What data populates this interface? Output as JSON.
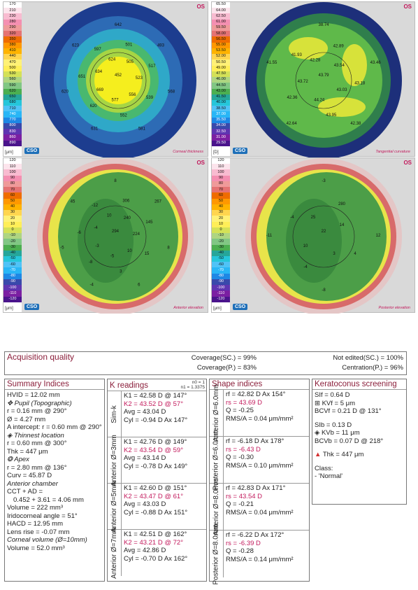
{
  "maps": {
    "top_left": {
      "scale": [
        "170",
        "210",
        "230",
        "280",
        "290",
        "320",
        "350",
        "380",
        "410",
        "440",
        "470",
        "500",
        "530",
        "560",
        "590",
        "620",
        "650",
        "680",
        "710",
        "740",
        "770",
        "800",
        "830",
        "860",
        "890"
      ],
      "unit": "[μm]",
      "side": "OS",
      "title": "Corneal thickness",
      "labels": [
        "452",
        "501",
        "505",
        "493",
        "517",
        "523",
        "568",
        "539",
        "556",
        "581",
        "552",
        "577",
        "631",
        "620",
        "669",
        "620",
        "651",
        "634",
        "623",
        "597",
        "624",
        "642"
      ],
      "colors": {
        "outer": "#1d3d8f",
        "ring1": "#2d6bb5",
        "ring2": "#2fa8c8",
        "ring3": "#49b86f",
        "ring4": "#a6d544",
        "center": "#f5ee1e"
      }
    },
    "top_right": {
      "scale": [
        "65.50",
        "64.00",
        "62.50",
        "61.00",
        "59.50",
        "58.00",
        "56.50",
        "55.00",
        "53.50",
        "52.00",
        "50.50",
        "49.00",
        "47.50",
        "46.00",
        "44.50",
        "43.00",
        "41.50",
        "40.00",
        "38.50",
        "37.00",
        "35.50",
        "34.00",
        "32.50",
        "31.00",
        "29.50"
      ],
      "unit": "[D]",
      "side": "OS",
      "title": "Tangential curvature",
      "labels": [
        "43.79",
        "42.89",
        "43.54",
        "43.46",
        "43.18",
        "43.03",
        "42.38",
        "43.95",
        "44.24",
        "42.64",
        "42.36",
        "43.72",
        "41.55",
        "41.93",
        "42.28",
        "38.74"
      ],
      "colors": {
        "outer": "#1d2f7a",
        "ring1": "#2f7e4c",
        "mid": "#5fb94a",
        "hot": "#d7e23a"
      }
    },
    "bottom_left": {
      "scale": [
        "120",
        "110",
        "100",
        "90",
        "80",
        "70",
        "60",
        "50",
        "40",
        "30",
        "20",
        "10",
        "0",
        "-10",
        "-20",
        "-30",
        "-40",
        "-50",
        "-60",
        "-70",
        "-80",
        "-90",
        "-100",
        "-110",
        "-120"
      ],
      "unit": "[μm]",
      "side": "OS",
      "title": "Anterior elevation",
      "labels": [
        "294",
        "306",
        "240",
        "267",
        "145",
        "224",
        "8",
        "15",
        "10",
        "6",
        "3",
        "-5",
        "-4",
        "-8",
        "-3",
        "-5",
        "-6",
        "-4",
        "45",
        "-12",
        "10",
        "8"
      ],
      "colors": {
        "outer": "#d86a6a",
        "edge": "#e4c6c6",
        "yellow": "#e8e44a",
        "green": "#4c9e48",
        "dark": "#3a8a3e"
      }
    },
    "bottom_right": {
      "scale": [
        "120",
        "110",
        "100",
        "90",
        "80",
        "70",
        "60",
        "50",
        "40",
        "30",
        "20",
        "10",
        "0",
        "-10",
        "-20",
        "-30",
        "-40",
        "-50",
        "-60",
        "-70",
        "-80",
        "-90",
        "-100",
        "-110",
        "-120"
      ],
      "unit": "[μm]",
      "side": "OS",
      "title": "Posterior elevation",
      "labels": [
        "22",
        "280",
        "14",
        "12",
        "4",
        "3",
        "-8",
        "-4",
        "10",
        "-11",
        "-4",
        "25",
        "-3"
      ],
      "colors": {
        "outer": "#d86a6a",
        "edge": "#e4c6c6",
        "yellow": "#e8e44a",
        "green": "#4c9e48",
        "dark": "#3a8a3e"
      }
    }
  },
  "acquisition": {
    "title": "Acquisition quality",
    "coverage_sc": "Coverage(SC.) = 99%",
    "coverage_p": "Coverage(P.) = 83%",
    "not_edited": "Not edited(SC.) = 100%",
    "centration": "Centration(P.) = 96%"
  },
  "summary": {
    "title": "Summary Indices",
    "rows": [
      {
        "text": "HVID = 12.02 mm",
        "style": ""
      },
      {
        "text": "✥ Pupil (Topographic)",
        "style": "ital"
      },
      {
        "text": "r = 0.16 mm @ 290°",
        "style": ""
      },
      {
        "text": "Ø = 4.27 mm",
        "style": ""
      },
      {
        "text": "A intercept: r = 0.60 mm @ 290°",
        "style": ""
      },
      {
        "text": "◈ Thinnest location",
        "style": "ital"
      },
      {
        "text": "r = 0.60 mm @ 300°",
        "style": ""
      },
      {
        "text": "Thk = 447 μm",
        "style": ""
      },
      {
        "text": "❂ Apex",
        "style": "ital"
      },
      {
        "text": "r = 2.80 mm @ 136°",
        "style": ""
      },
      {
        "text": "Curv = 45.87 D",
        "style": ""
      },
      {
        "text": "Anterior chamber",
        "style": "ital"
      },
      {
        "text": "CCT + AD =",
        "style": ""
      },
      {
        "text": "0.452 + 3.61 = 4.06 mm",
        "style": "indent"
      },
      {
        "text": "Volume = 222 mm³",
        "style": ""
      },
      {
        "text": "Iridocorneal angle = 51°",
        "style": ""
      },
      {
        "text": "HACD = 12.95 mm",
        "style": ""
      },
      {
        "text": "Lens rise = -0.07 mm",
        "style": ""
      },
      {
        "text": "Corneal volume (Ø=10mm)",
        "style": "ital"
      },
      {
        "text": "Volume = 52.0 mm³",
        "style": ""
      }
    ]
  },
  "k_readings": {
    "title": "K readings",
    "n0": "n0 = 1",
    "n1": "n1 = 1.3375",
    "groups": [
      {
        "label": "Sim-k",
        "k1": "K1 = 42.58 D @ 147°",
        "k2": "K2 = 43.52 D @ 57°",
        "avg": "Avg = 43.04 D",
        "cyl": "Cyl = -0.94 D Ax 147°"
      },
      {
        "label": "Anterior Ø=3mm",
        "k1": "K1 = 42.76 D @ 149°",
        "k2": "K2 = 43.54 D @ 59°",
        "avg": "Avg = 43.14 D",
        "cyl": "Cyl = -0.78 D Ax 149°"
      },
      {
        "label": "Anterior Ø=5mm",
        "k1": "K1 = 42.60 D @ 151°",
        "k2": "K2 = 43.47 D @ 61°",
        "avg": "Avg = 43.03 D",
        "cyl": "Cyl = -0.88 D Ax 151°"
      },
      {
        "label": "Anterior Ø=7mm",
        "k1": "K1 = 42.51 D @ 162°",
        "k2": "K2 = 43.21 D @ 72°",
        "avg": "Avg = 42.86 D",
        "cyl": "Cyl = -0.70 D Ax 162°"
      }
    ]
  },
  "shape": {
    "title": "Shape indices",
    "groups": [
      {
        "label": "Anterior Ø=6.0mm",
        "rf": "rf = 42.82 D Ax 154°",
        "rs": "rs = 43.69 D",
        "q": "Q = -0.25",
        "rms": "RMS/A = 0.04 μm/mm²"
      },
      {
        "label": "Posterior Ø=6.0mm",
        "rf": "rf = -6.18 D Ax 178°",
        "rs": "rs = -6.43 D",
        "q": "Q = -0.30",
        "rms": "RMS/A = 0.10 μm/mm²"
      },
      {
        "label": "Anterior Ø=8.0mm",
        "rf": "rf = 42.83 D Ax 171°",
        "rs": "rs = 43.54 D",
        "q": "Q = -0.21",
        "rms": "RMS/A = 0.04 μm/mm²"
      },
      {
        "label": "Posterior Ø=8.0mm",
        "rf": "rf = -6.22 D Ax 172°",
        "rs": "rs = -6.39 D",
        "q": "Q = -0.28",
        "rms": "RMS/A = 0.14 μm/mm²"
      }
    ]
  },
  "keratoconus": {
    "title": "Keratoconus screening",
    "rows": [
      {
        "text": "SIf = 0.64 D",
        "style": ""
      },
      {
        "text": "⊞ KVf = 5 μm",
        "style": ""
      },
      {
        "text": "BCVf = 0.21 D @ 131°",
        "style": ""
      },
      {
        "text": "",
        "style": "gap"
      },
      {
        "text": "SIb = 0.13 D",
        "style": ""
      },
      {
        "text": "◈ KVb = 11 μm",
        "style": ""
      },
      {
        "text": "BCVb = 0.07 D @ 218°",
        "style": ""
      },
      {
        "text": "",
        "style": "gap"
      },
      {
        "text": "Thk = 447 μm",
        "style": "warn"
      },
      {
        "text": "",
        "style": "gap"
      },
      {
        "text": "Class:",
        "style": ""
      },
      {
        "text": "- 'Normal'",
        "style": ""
      }
    ]
  }
}
